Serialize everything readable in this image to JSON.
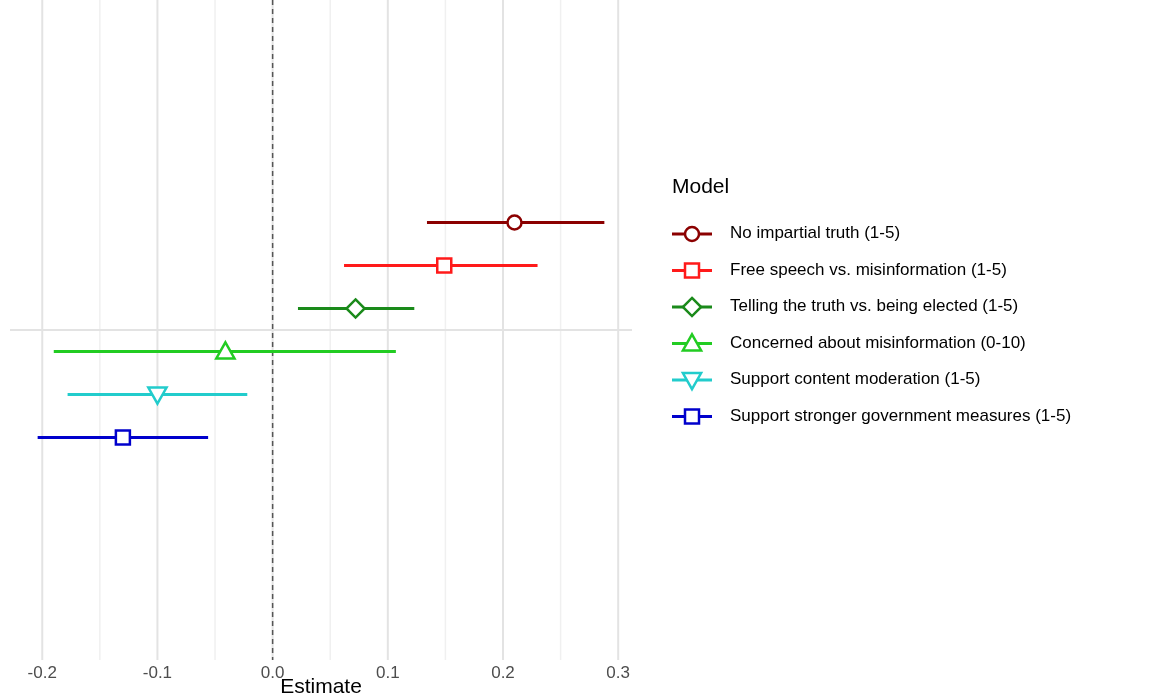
{
  "chart_data": {
    "type": "scatter",
    "orientation": "horizontal",
    "categories": [
      null
    ],
    "xlabel": "Estimate",
    "legend_title": "Model",
    "legend": "right",
    "grid": true,
    "xlim": [
      -0.228,
      0.312
    ],
    "xticks": [
      -0.2,
      {
        "value": -0.15,
        "label": null
      },
      -0.1,
      {
        "value": -0.05,
        "label": null
      },
      {
        "value": 0,
        "label": "0.0"
      },
      {
        "value": 0.05,
        "label": null
      },
      0.1,
      {
        "value": 0.15,
        "label": null
      },
      0.2,
      {
        "value": 0.25,
        "label": null
      },
      0.3
    ],
    "ref_lines": [
      {
        "axis": "x",
        "value": 0,
        "line_style": "dashed",
        "color": "#555555"
      }
    ],
    "series": [
      {
        "name": "No impartial truth (1-5)",
        "color": "#8b0000",
        "marker": "circle",
        "values": [
          0.21
        ],
        "errors": [
          [
            0.134,
            0.288
          ]
        ]
      },
      {
        "name": "Free speech vs. misinformation (1-5)",
        "color": "#ff1a1a",
        "marker": "square",
        "values": [
          0.149
        ],
        "errors": [
          [
            0.062,
            0.23
          ]
        ]
      },
      {
        "name": "Telling the truth vs. being elected (1-5)",
        "color": "#1a8a1a",
        "marker": "diamond",
        "values": [
          0.072
        ],
        "errors": [
          [
            0.022,
            0.123
          ]
        ]
      },
      {
        "name": "Concerned about misinformation (0-10)",
        "color": "#22cc22",
        "marker": "triangle",
        "values": [
          -0.041
        ],
        "errors": [
          [
            -0.19,
            0.107
          ]
        ]
      },
      {
        "name": "Support content moderation (1-5)",
        "color": "#22cccc",
        "marker": "triangle-down",
        "values": [
          -0.1
        ],
        "errors": [
          [
            -0.178,
            -0.022
          ]
        ]
      },
      {
        "name": "Support stronger government measures (1-5)",
        "color": "#0000cc",
        "marker": "square",
        "values": [
          -0.13
        ],
        "errors": [
          [
            -0.204,
            -0.056
          ]
        ]
      }
    ]
  }
}
